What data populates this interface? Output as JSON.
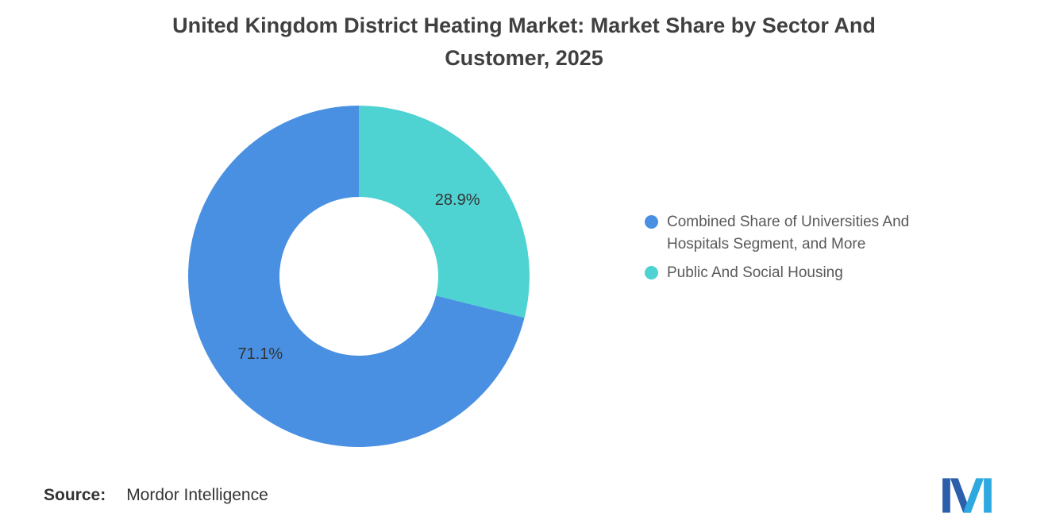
{
  "title": "United Kingdom District Heating Market: Market Share by Sector And Customer, 2025",
  "chart_data": {
    "type": "pie",
    "donut": true,
    "title": "United Kingdom District Heating Market: Market Share by Sector And Customer, 2025",
    "start_angle_deg": -90,
    "direction": "counterclockwise",
    "inner_ratio": 0.465,
    "legend_position": "right",
    "slices": [
      {
        "label": "Combined Share of Universities And Hospitals Segment, and More",
        "value": 71.1,
        "display": "71.1%",
        "color": "#4A90E2"
      },
      {
        "label": "Public And Social Housing",
        "value": 28.9,
        "display": "28.9%",
        "color": "#4FD2D2"
      }
    ]
  },
  "source": {
    "label": "Source:",
    "value": "Mordor Intelligence"
  },
  "logo": {
    "name": "mordor-intelligence-logo",
    "color_dark": "#2B5FAC",
    "color_light": "#2EA9E0"
  }
}
